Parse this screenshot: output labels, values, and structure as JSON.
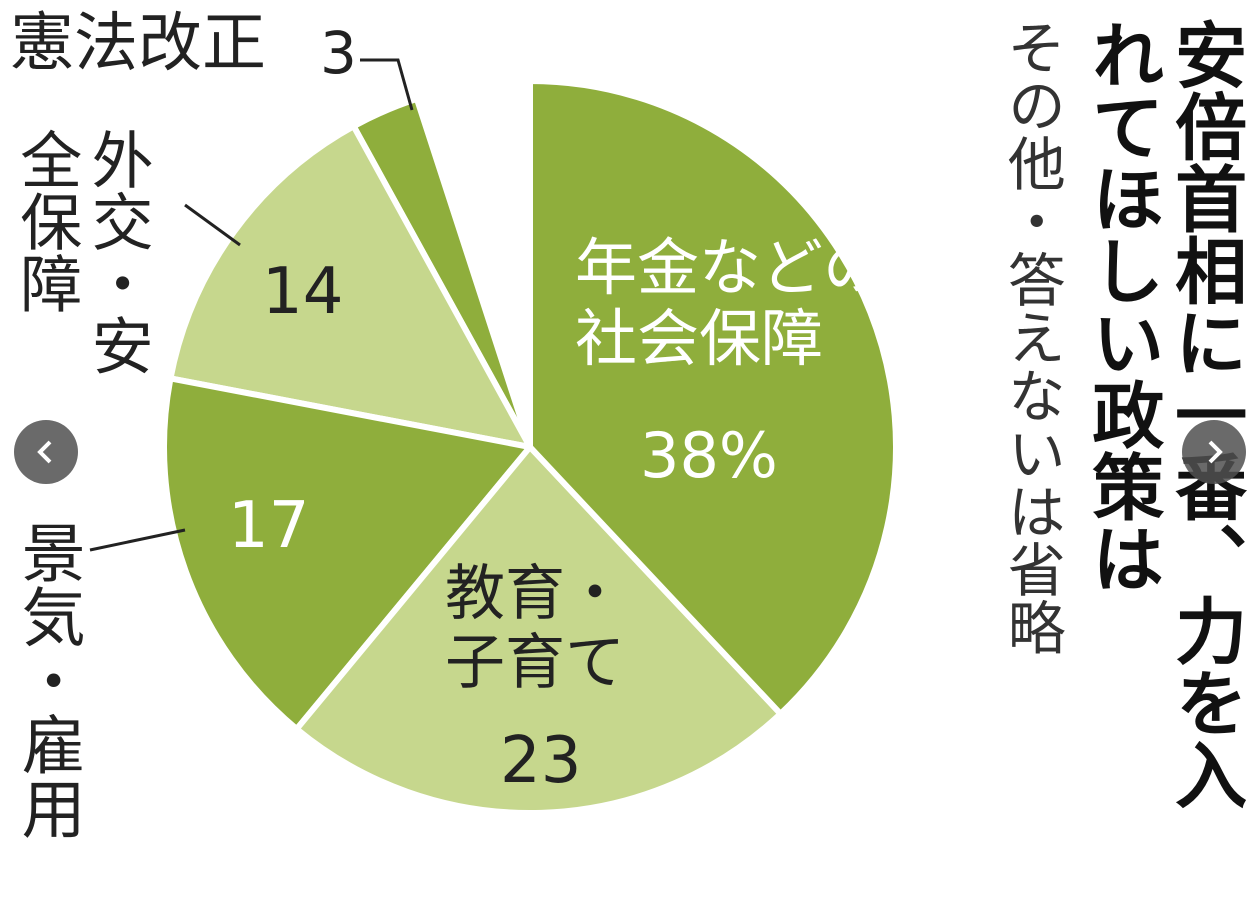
{
  "chart_data": {
    "type": "pie",
    "title": "安倍首相に一番、力を入れてほしい政策は",
    "subtitle": "その他・答えないは省略",
    "categories": [
      "年金などの社会保障",
      "教育・子育て",
      "景気・雇用",
      "外交・安全保障",
      "憲法改正"
    ],
    "values": [
      38,
      23,
      17,
      14,
      3
    ],
    "value_labels": [
      "38%",
      "23",
      "17",
      "14",
      "3"
    ],
    "colors": [
      "#8fae3c",
      "#c6d78d",
      "#8fae3c",
      "#c6d78d",
      "#8fae3c"
    ]
  }
}
